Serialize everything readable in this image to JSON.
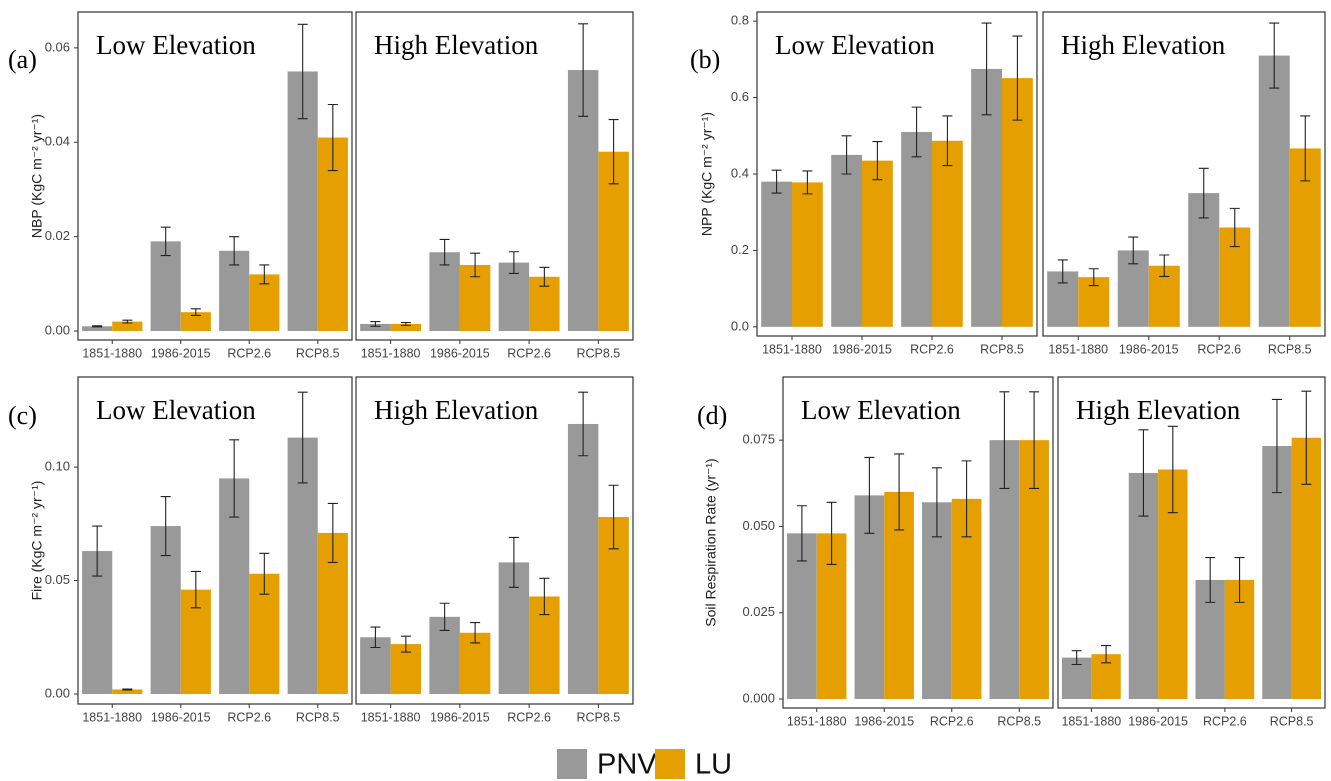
{
  "chart_data": [
    {
      "type": "bar",
      "label": "(a)",
      "ylabel": "NBP (KgC m⁻² yr⁻¹)",
      "categories": [
        "1851-1880",
        "1986-2015",
        "RCP2.6",
        "RCP8.5"
      ],
      "ylim": [
        -0.0019,
        0.0676
      ],
      "yticks": [
        {
          "value": 0,
          "label": "0.00"
        },
        0.02,
        0.04,
        0.06
      ],
      "facets": [
        {
          "title": "Low Elevation",
          "series": [
            {
              "values": [
                0.001,
                0.019,
                0.017,
                0.055
              ],
              "errors": [
                0.0001,
                0.003,
                0.003,
                0.01
              ]
            },
            {
              "values": [
                0.002,
                0.004,
                0.012,
                0.041
              ],
              "errors": [
                0.0003,
                0.0007,
                0.002,
                0.007
              ]
            }
          ]
        },
        {
          "title": "High Elevation",
          "series": [
            {
              "values": [
                0.0015,
                0.0167,
                0.0145,
                0.0553
              ],
              "errors": [
                0.0005,
                0.0027,
                0.0023,
                0.0098
              ]
            },
            {
              "values": [
                0.0015,
                0.014,
                0.0115,
                0.038
              ],
              "errors": [
                0.0003,
                0.0025,
                0.002,
                0.0068
              ]
            }
          ]
        }
      ]
    },
    {
      "type": "bar",
      "label": "(b)",
      "ylabel": "NPP (KgC m⁻² yr⁻¹)",
      "categories": [
        "1851-1880",
        "1986-2015",
        "RCP2.6",
        "RCP8.5"
      ],
      "ylim": [
        -0.024,
        0.824
      ],
      "yticks": [
        {
          "value": 0,
          "label": "0.0"
        },
        0.2,
        0.4,
        0.6,
        0.8
      ],
      "facets": [
        {
          "title": "Low Elevation",
          "series": [
            {
              "values": [
                0.38,
                0.45,
                0.51,
                0.675
              ],
              "errors": [
                0.03,
                0.05,
                0.065,
                0.12
              ]
            },
            {
              "values": [
                0.378,
                0.435,
                0.487,
                0.651
              ],
              "errors": [
                0.03,
                0.05,
                0.065,
                0.11
              ]
            }
          ]
        },
        {
          "title": "High Elevation",
          "series": [
            {
              "values": [
                0.145,
                0.2,
                0.35,
                0.71
              ],
              "errors": [
                0.03,
                0.035,
                0.065,
                0.085
              ]
            },
            {
              "values": [
                0.13,
                0.16,
                0.26,
                0.467
              ],
              "errors": [
                0.022,
                0.028,
                0.05,
                0.085
              ]
            }
          ]
        }
      ]
    },
    {
      "type": "bar",
      "label": "(c)",
      "ylabel": "Fire (KgC m⁻² yr⁻¹)",
      "categories": [
        "1851-1880",
        "1986-2015",
        "RCP2.6",
        "RCP8.5"
      ],
      "ylim": [
        -0.0044,
        0.1397
      ],
      "yticks": [
        {
          "value": 0,
          "label": "0.00"
        },
        0.05,
        {
          "value": 0.1,
          "label": "0.10"
        }
      ],
      "facets": [
        {
          "title": "Low Elevation",
          "series": [
            {
              "values": [
                0.063,
                0.074,
                0.095,
                0.113
              ],
              "errors": [
                0.011,
                0.013,
                0.017,
                0.02
              ]
            },
            {
              "values": [
                0.002,
                0.046,
                0.053,
                0.071
              ],
              "errors": [
                0.0002,
                0.008,
                0.009,
                0.013
              ]
            }
          ]
        },
        {
          "title": "High Elevation",
          "series": [
            {
              "values": [
                0.025,
                0.034,
                0.058,
                0.119
              ],
              "errors": [
                0.0045,
                0.006,
                0.011,
                0.014
              ]
            },
            {
              "values": [
                0.022,
                0.027,
                0.043,
                0.078
              ],
              "errors": [
                0.0035,
                0.0045,
                0.008,
                0.014
              ]
            }
          ]
        }
      ]
    },
    {
      "type": "bar",
      "label": "(d)",
      "ylabel": "Soil Respiration Rate (yr⁻¹)",
      "categories": [
        "1851-1880",
        "1986-2015",
        "RCP2.6",
        "RCP8.5"
      ],
      "ylim": [
        -0.0026,
        0.0933
      ],
      "yticks": [
        {
          "value": 0,
          "label": "0.000"
        },
        0.025,
        {
          "value": 0.05,
          "label": "0.050"
        },
        0.075
      ],
      "facets": [
        {
          "title": "Low Elevation",
          "series": [
            {
              "values": [
                0.048,
                0.059,
                0.057,
                0.075
              ],
              "errors": [
                0.008,
                0.011,
                0.01,
                0.014
              ]
            },
            {
              "values": [
                0.048,
                0.06,
                0.058,
                0.075
              ],
              "errors": [
                0.009,
                0.011,
                0.011,
                0.014
              ]
            }
          ]
        },
        {
          "title": "High Elevation",
          "series": [
            {
              "values": [
                0.012,
                0.0655,
                0.0345,
                0.0733
              ],
              "errors": [
                0.002,
                0.0125,
                0.0065,
                0.0135
              ]
            },
            {
              "values": [
                0.013,
                0.0665,
                0.0345,
                0.0757
              ],
              "errors": [
                0.0025,
                0.0125,
                0.0065,
                0.0135
              ]
            }
          ]
        }
      ]
    }
  ],
  "legend": [
    {
      "name": "PNV",
      "color": "#999999"
    },
    {
      "name": "LU",
      "color": "#e69f00"
    }
  ]
}
